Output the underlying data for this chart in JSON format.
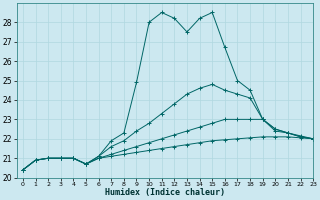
{
  "xlabel": "Humidex (Indice chaleur)",
  "bg_color": "#cce8f0",
  "line_color": "#006666",
  "grid_color": "#b0d8e0",
  "xlim": [
    -0.5,
    23
  ],
  "ylim": [
    20,
    29
  ],
  "yticks": [
    20,
    21,
    22,
    23,
    24,
    25,
    26,
    27,
    28
  ],
  "xticks": [
    0,
    1,
    2,
    3,
    4,
    5,
    6,
    7,
    8,
    9,
    10,
    11,
    12,
    13,
    14,
    15,
    16,
    17,
    18,
    19,
    20,
    21,
    22,
    23
  ],
  "lines": [
    {
      "x": [
        0,
        1,
        2,
        3,
        4,
        5,
        6,
        7,
        8,
        9,
        10,
        11,
        12,
        13,
        14,
        15,
        16,
        17,
        18,
        19,
        20,
        21,
        22,
        23
      ],
      "y": [
        20.4,
        20.9,
        21.0,
        21.0,
        21.0,
        20.7,
        21.1,
        21.9,
        22.3,
        24.9,
        28.0,
        28.5,
        28.2,
        27.5,
        28.2,
        28.5,
        26.7,
        25.0,
        24.5,
        23.0,
        22.5,
        22.3,
        22.1,
        22.0
      ]
    },
    {
      "x": [
        0,
        1,
        2,
        3,
        4,
        5,
        6,
        7,
        8,
        9,
        10,
        11,
        12,
        13,
        14,
        15,
        16,
        17,
        18,
        19,
        20,
        21,
        22,
        23
      ],
      "y": [
        20.4,
        20.9,
        21.0,
        21.0,
        21.0,
        20.7,
        21.1,
        21.6,
        21.9,
        22.4,
        22.8,
        23.3,
        23.8,
        24.3,
        24.6,
        24.8,
        24.5,
        24.3,
        24.1,
        23.0,
        22.4,
        22.3,
        22.1,
        22.0
      ]
    },
    {
      "x": [
        0,
        1,
        2,
        3,
        4,
        5,
        6,
        7,
        8,
        9,
        10,
        11,
        12,
        13,
        14,
        15,
        16,
        17,
        18,
        19,
        20,
        21,
        22,
        23
      ],
      "y": [
        20.4,
        20.9,
        21.0,
        21.0,
        21.0,
        20.7,
        21.0,
        21.2,
        21.4,
        21.6,
        21.8,
        22.0,
        22.2,
        22.4,
        22.6,
        22.8,
        23.0,
        23.0,
        23.0,
        23.0,
        22.5,
        22.3,
        22.15,
        22.0
      ]
    },
    {
      "x": [
        0,
        1,
        2,
        3,
        4,
        5,
        6,
        7,
        8,
        9,
        10,
        11,
        12,
        13,
        14,
        15,
        16,
        17,
        18,
        19,
        20,
        21,
        22,
        23
      ],
      "y": [
        20.4,
        20.9,
        21.0,
        21.0,
        21.0,
        20.7,
        21.0,
        21.1,
        21.2,
        21.3,
        21.4,
        21.5,
        21.6,
        21.7,
        21.8,
        21.9,
        21.95,
        22.0,
        22.05,
        22.1,
        22.1,
        22.1,
        22.05,
        22.0
      ]
    }
  ]
}
